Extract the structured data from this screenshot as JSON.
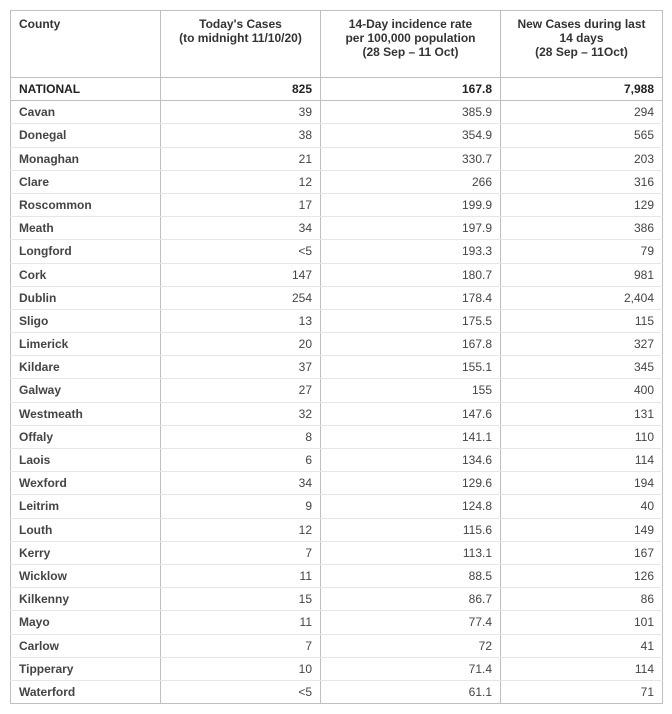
{
  "headers": {
    "county": "County",
    "todays_cases_l1": "Today's Cases",
    "todays_cases_l2": "(to midnight 11/10/20)",
    "incidence_l1": "14-Day incidence rate",
    "incidence_l2": "per 100,000 population",
    "incidence_l3": "(28 Sep – 11 Oct)",
    "newcases_l1": "New Cases during last",
    "newcases_l2": "14 days",
    "newcases_l3": "(28 Sep – 11Oct)"
  },
  "national": {
    "label": "NATIONAL",
    "today": "825",
    "incidence": "167.8",
    "new14": "7,988"
  },
  "rows": [
    {
      "county": "Cavan",
      "today": "39",
      "incidence": "385.9",
      "new14": "294"
    },
    {
      "county": "Donegal",
      "today": "38",
      "incidence": "354.9",
      "new14": "565"
    },
    {
      "county": "Monaghan",
      "today": "21",
      "incidence": "330.7",
      "new14": "203"
    },
    {
      "county": "Clare",
      "today": "12",
      "incidence": "266",
      "new14": "316"
    },
    {
      "county": "Roscommon",
      "today": "17",
      "incidence": "199.9",
      "new14": "129"
    },
    {
      "county": "Meath",
      "today": "34",
      "incidence": "197.9",
      "new14": "386"
    },
    {
      "county": "Longford",
      "today": "<5",
      "incidence": "193.3",
      "new14": "79"
    },
    {
      "county": "Cork",
      "today": "147",
      "incidence": "180.7",
      "new14": "981"
    },
    {
      "county": "Dublin",
      "today": "254",
      "incidence": "178.4",
      "new14": "2,404"
    },
    {
      "county": "Sligo",
      "today": "13",
      "incidence": "175.5",
      "new14": "115"
    },
    {
      "county": "Limerick",
      "today": "20",
      "incidence": "167.8",
      "new14": "327"
    },
    {
      "county": "Kildare",
      "today": "37",
      "incidence": "155.1",
      "new14": "345"
    },
    {
      "county": "Galway",
      "today": "27",
      "incidence": "155",
      "new14": "400"
    },
    {
      "county": "Westmeath",
      "today": "32",
      "incidence": "147.6",
      "new14": "131"
    },
    {
      "county": "Offaly",
      "today": "8",
      "incidence": "141.1",
      "new14": "110"
    },
    {
      "county": "Laois",
      "today": "6",
      "incidence": "134.6",
      "new14": "114"
    },
    {
      "county": "Wexford",
      "today": "34",
      "incidence": "129.6",
      "new14": "194"
    },
    {
      "county": "Leitrim",
      "today": "9",
      "incidence": "124.8",
      "new14": "40"
    },
    {
      "county": "Louth",
      "today": "12",
      "incidence": "115.6",
      "new14": "149"
    },
    {
      "county": "Kerry",
      "today": "7",
      "incidence": "113.1",
      "new14": "167"
    },
    {
      "county": "Wicklow",
      "today": "11",
      "incidence": "88.5",
      "new14": "126"
    },
    {
      "county": "Kilkenny",
      "today": "15",
      "incidence": "86.7",
      "new14": "86"
    },
    {
      "county": "Mayo",
      "today": "11",
      "incidence": "77.4",
      "new14": "101"
    },
    {
      "county": "Carlow",
      "today": "7",
      "incidence": "72",
      "new14": "41"
    },
    {
      "county": "Tipperary",
      "today": "10",
      "incidence": "71.4",
      "new14": "114"
    },
    {
      "county": "Waterford",
      "today": "<5",
      "incidence": "61.1",
      "new14": "71"
    }
  ]
}
